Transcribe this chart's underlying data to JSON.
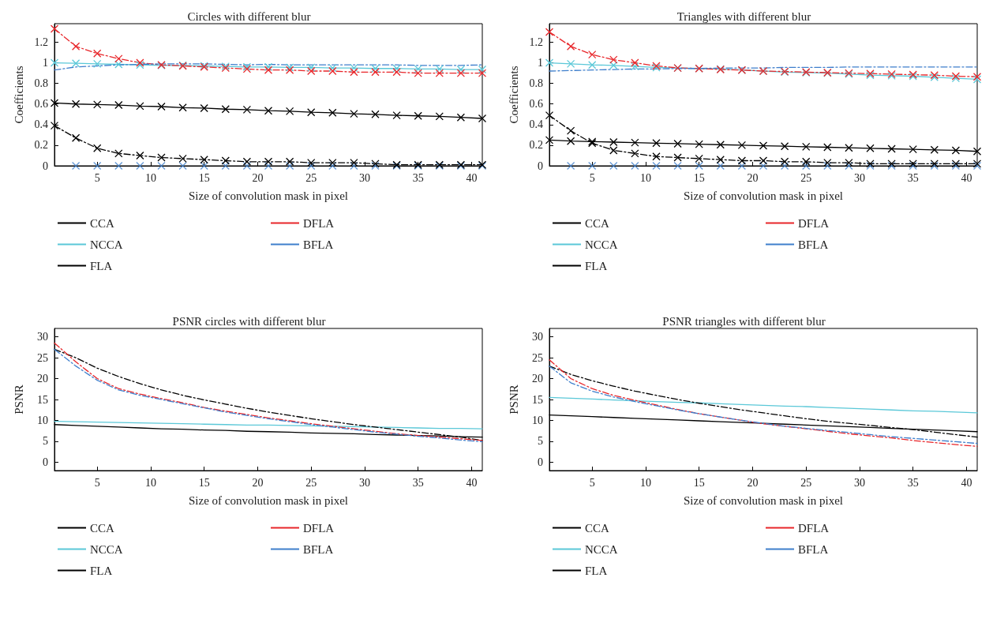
{
  "chart_data": [
    {
      "type": "line",
      "title": "Circles with different blur",
      "xlabel": "Size of convolution mask in pixel",
      "ylabel": "Coefficients",
      "x": [
        1,
        3,
        5,
        7,
        9,
        11,
        13,
        15,
        17,
        19,
        21,
        23,
        25,
        27,
        29,
        31,
        33,
        35,
        37,
        39,
        41
      ],
      "xlim": [
        1,
        41
      ],
      "xticks": [
        5,
        10,
        15,
        20,
        25,
        30,
        35,
        40
      ],
      "ylim": [
        0,
        1.38
      ],
      "yticks": [
        0,
        0.2,
        0.4,
        0.6,
        0.8,
        1,
        1.2
      ],
      "grid": false,
      "legend": "bottom",
      "marker": "cross",
      "series": [
        {
          "name": "CCA",
          "color": "#000000",
          "line_style": "solid",
          "values": [
            0.61,
            0.6,
            0.595,
            0.59,
            0.58,
            0.575,
            0.565,
            0.56,
            0.55,
            0.545,
            0.535,
            0.53,
            0.52,
            0.515,
            0.505,
            0.5,
            0.49,
            0.485,
            0.48,
            0.47,
            0.46
          ]
        },
        {
          "name": "NCCA",
          "color": "#5bc8d8",
          "line_style": "solid",
          "values": [
            1,
            0.995,
            0.99,
            0.985,
            0.98,
            0.975,
            0.975,
            0.97,
            0.965,
            0.96,
            0.96,
            0.955,
            0.955,
            0.95,
            0.95,
            0.945,
            0.945,
            0.94,
            0.94,
            0.935,
            0.935
          ]
        },
        {
          "name": "FLA",
          "color": "#000000",
          "line_style": "dashed",
          "values": [
            0.39,
            0.27,
            0.17,
            0.12,
            0.1,
            0.08,
            0.07,
            0.06,
            0.05,
            0.04,
            0.04,
            0.04,
            0.03,
            0.03,
            0.03,
            0.02,
            0.01,
            0.01,
            0.01,
            0.01,
            0.01
          ]
        },
        {
          "name": "DFLA",
          "color": "#e8262a",
          "line_style": "dashed",
          "values": [
            1.33,
            1.16,
            1.09,
            1.04,
            1,
            0.98,
            0.97,
            0.96,
            0.95,
            0.94,
            0.93,
            0.93,
            0.92,
            0.92,
            0.91,
            0.91,
            0.91,
            0.9,
            0.9,
            0.9,
            0.9
          ]
        },
        {
          "name": "BFLA",
          "color": "#3f7fcc",
          "line_style": "dashed",
          "marker": "none",
          "values": [
            0.93,
            0.96,
            0.97,
            0.98,
            0.985,
            0.99,
            0.99,
            0.99,
            0.985,
            0.98,
            0.985,
            0.98,
            0.98,
            0.98,
            0.98,
            0.98,
            0.98,
            0.975,
            0.975,
            0.975,
            0.98
          ]
        },
        {
          "type": "scatter",
          "color": "#3f7fcc",
          "x": [
            3,
            5,
            7,
            9,
            11,
            13,
            15,
            17,
            19,
            21,
            23,
            25,
            27,
            29,
            31,
            33,
            35,
            37,
            39,
            41
          ],
          "values": [
            0,
            0,
            0,
            0,
            0,
            0,
            0,
            0,
            0,
            0,
            0,
            0,
            0,
            0,
            0,
            0,
            0,
            0,
            0,
            0
          ]
        }
      ]
    },
    {
      "type": "line",
      "title": "Triangles with different blur",
      "xlabel": "Size of convolution mask in pixel",
      "ylabel": "Coefficients",
      "x": [
        1,
        3,
        5,
        7,
        9,
        11,
        13,
        15,
        17,
        19,
        21,
        23,
        25,
        27,
        29,
        31,
        33,
        35,
        37,
        39,
        41
      ],
      "xlim": [
        1,
        41
      ],
      "xticks": [
        5,
        10,
        15,
        20,
        25,
        30,
        35,
        40
      ],
      "ylim": [
        0,
        1.38
      ],
      "yticks": [
        0,
        0.2,
        0.4,
        0.6,
        0.8,
        1,
        1.2
      ],
      "grid": false,
      "legend": "bottom",
      "marker": "cross",
      "series": [
        {
          "name": "CCA",
          "color": "#000000",
          "line_style": "solid",
          "values": [
            0.25,
            0.24,
            0.235,
            0.23,
            0.225,
            0.22,
            0.215,
            0.21,
            0.205,
            0.2,
            0.195,
            0.19,
            0.185,
            0.18,
            0.175,
            0.17,
            0.165,
            0.16,
            0.155,
            0.15,
            0.14
          ]
        },
        {
          "name": "NCCA",
          "color": "#5bc8d8",
          "line_style": "solid",
          "values": [
            1,
            0.99,
            0.98,
            0.975,
            0.965,
            0.955,
            0.95,
            0.945,
            0.94,
            0.93,
            0.92,
            0.91,
            0.905,
            0.9,
            0.89,
            0.88,
            0.875,
            0.87,
            0.86,
            0.85,
            0.84
          ]
        },
        {
          "name": "FLA",
          "color": "#000000",
          "line_style": "dashed",
          "values": [
            0.49,
            0.34,
            0.22,
            0.15,
            0.12,
            0.09,
            0.08,
            0.07,
            0.06,
            0.05,
            0.05,
            0.04,
            0.04,
            0.03,
            0.03,
            0.02,
            0.02,
            0.02,
            0.02,
            0.02,
            0.02
          ]
        },
        {
          "name": "DFLA",
          "color": "#e8262a",
          "line_style": "dashed",
          "values": [
            1.3,
            1.16,
            1.08,
            1.03,
            1,
            0.97,
            0.95,
            0.945,
            0.935,
            0.93,
            0.92,
            0.915,
            0.91,
            0.905,
            0.9,
            0.895,
            0.89,
            0.885,
            0.88,
            0.87,
            0.865
          ]
        },
        {
          "name": "BFLA",
          "color": "#3f7fcc",
          "line_style": "dashed",
          "marker": "none",
          "values": [
            0.92,
            0.925,
            0.93,
            0.935,
            0.94,
            0.94,
            0.945,
            0.945,
            0.95,
            0.95,
            0.95,
            0.955,
            0.955,
            0.955,
            0.96,
            0.96,
            0.96,
            0.96,
            0.96,
            0.96,
            0.96
          ]
        },
        {
          "type": "scatter",
          "color": "#3f7fcc",
          "x": [
            3,
            5,
            7,
            9,
            11,
            13,
            15,
            17,
            19,
            21,
            23,
            25,
            27,
            29,
            31,
            33,
            35,
            37,
            39,
            41
          ],
          "values": [
            0,
            0,
            0,
            0,
            0,
            0,
            0,
            0,
            0,
            0,
            0,
            0,
            0,
            0,
            0,
            0,
            0,
            0,
            0,
            0
          ]
        }
      ]
    },
    {
      "type": "line",
      "title": "PSNR circles with different blur",
      "xlabel": "Size of convolution mask in pixel",
      "ylabel": "PSNR",
      "x": [
        1,
        3,
        5,
        7,
        9,
        11,
        13,
        15,
        17,
        19,
        21,
        23,
        25,
        27,
        29,
        31,
        33,
        35,
        37,
        39,
        41
      ],
      "xlim": [
        1,
        41
      ],
      "xticks": [
        5,
        10,
        15,
        20,
        25,
        30,
        35,
        40
      ],
      "ylim": [
        -2,
        32
      ],
      "yticks": [
        0,
        5,
        10,
        15,
        20,
        25,
        30
      ],
      "grid": false,
      "legend": "bottom",
      "series": [
        {
          "name": "CCA",
          "color": "#000000",
          "line_style": "solid",
          "values": [
            9,
            8.8,
            8.6,
            8.4,
            8.2,
            8,
            7.9,
            7.7,
            7.6,
            7.4,
            7.3,
            7.2,
            7,
            6.9,
            6.8,
            6.6,
            6.5,
            6.4,
            6.3,
            6.1,
            6
          ]
        },
        {
          "name": "NCCA",
          "color": "#5bc8d8",
          "line_style": "solid",
          "values": [
            9.8,
            9.7,
            9.6,
            9.5,
            9.4,
            9.3,
            9.2,
            9.1,
            9,
            8.9,
            8.9,
            8.8,
            8.7,
            8.6,
            8.5,
            8.4,
            8.3,
            8.2,
            8.1,
            8.1,
            8
          ]
        },
        {
          "name": "FLA",
          "color": "#000000",
          "line_style": "dashed",
          "values": [
            27,
            25,
            22.5,
            20.5,
            18.8,
            17.3,
            16,
            14.9,
            13.9,
            12.9,
            12,
            11.2,
            10.4,
            9.7,
            9,
            8.4,
            7.8,
            7.2,
            6.6,
            6,
            5.2
          ]
        },
        {
          "name": "DFLA",
          "color": "#e8262a",
          "line_style": "dashed",
          "values": [
            28.5,
            24,
            20,
            17.6,
            16.3,
            15.2,
            14.2,
            13.1,
            12.2,
            11.4,
            10.6,
            9.9,
            9.2,
            8.6,
            8,
            7.4,
            6.8,
            6.4,
            6,
            5.6,
            5.2
          ]
        },
        {
          "name": "BFLA",
          "color": "#3f7fcc",
          "line_style": "dashed",
          "values": [
            27,
            23,
            19.6,
            17.3,
            16,
            15,
            14,
            13,
            12,
            11.2,
            10.4,
            9.7,
            9,
            8.4,
            7.8,
            7.2,
            6.7,
            6.2,
            5.8,
            5.3,
            4.9
          ]
        }
      ]
    },
    {
      "type": "line",
      "title": "PSNR triangles with different blur",
      "xlabel": "Size of convolution mask in pixel",
      "ylabel": "PSNR",
      "x": [
        1,
        3,
        5,
        7,
        9,
        11,
        13,
        15,
        17,
        19,
        21,
        23,
        25,
        27,
        29,
        31,
        33,
        35,
        37,
        39,
        41
      ],
      "xlim": [
        1,
        41
      ],
      "xticks": [
        5,
        10,
        15,
        20,
        25,
        30,
        35,
        40
      ],
      "ylim": [
        -2,
        32
      ],
      "yticks": [
        0,
        5,
        10,
        15,
        20,
        25,
        30
      ],
      "grid": false,
      "legend": "bottom",
      "series": [
        {
          "name": "CCA",
          "color": "#000000",
          "line_style": "solid",
          "values": [
            11.3,
            11.1,
            10.9,
            10.7,
            10.5,
            10.3,
            10.1,
            9.9,
            9.7,
            9.5,
            9.3,
            9.1,
            8.9,
            8.7,
            8.5,
            8.3,
            8.1,
            7.9,
            7.7,
            7.5,
            7.3
          ]
        },
        {
          "name": "NCCA",
          "color": "#5bc8d8",
          "line_style": "solid",
          "values": [
            15.5,
            15.3,
            15.1,
            14.9,
            14.7,
            14.5,
            14.3,
            14.2,
            14,
            13.8,
            13.6,
            13.4,
            13.3,
            13.1,
            12.9,
            12.7,
            12.5,
            12.3,
            12.2,
            12,
            11.8
          ]
        },
        {
          "name": "FLA",
          "color": "#000000",
          "line_style": "dashed",
          "values": [
            23,
            21,
            19.5,
            18.2,
            17,
            16,
            15,
            14.1,
            13.3,
            12.5,
            11.8,
            11.1,
            10.4,
            9.8,
            9.3,
            8.8,
            8.3,
            7.8,
            7.2,
            6.6,
            6
          ]
        },
        {
          "name": "DFLA",
          "color": "#e8262a",
          "line_style": "dashed",
          "values": [
            24.5,
            20,
            17.6,
            16,
            14.8,
            13.7,
            12.6,
            11.6,
            10.8,
            10,
            9.2,
            8.6,
            8,
            7.4,
            6.8,
            6.3,
            5.8,
            5.2,
            4.7,
            4.2,
            3.8
          ]
        },
        {
          "name": "BFLA",
          "color": "#3f7fcc",
          "line_style": "dashed",
          "values": [
            23,
            19,
            17,
            15.6,
            14.5,
            13.5,
            12.5,
            11.6,
            10.8,
            10,
            9.3,
            8.6,
            8.1,
            7.6,
            7.1,
            6.6,
            6.1,
            5.7,
            5.3,
            4.9,
            4.5
          ]
        }
      ]
    }
  ]
}
